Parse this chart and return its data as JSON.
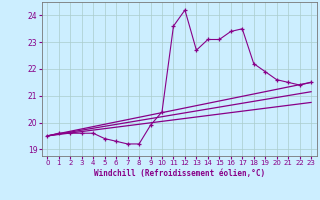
{
  "xlabel": "Windchill (Refroidissement éolien,°C)",
  "bg_color": "#cceeff",
  "line_color": "#880088",
  "grid_color": "#aacccc",
  "xlim": [
    -0.5,
    23.5
  ],
  "ylim": [
    18.75,
    24.5
  ],
  "xticks": [
    0,
    1,
    2,
    3,
    4,
    5,
    6,
    7,
    8,
    9,
    10,
    11,
    12,
    13,
    14,
    15,
    16,
    17,
    18,
    19,
    20,
    21,
    22,
    23
  ],
  "yticks": [
    19,
    20,
    21,
    22,
    23,
    24
  ],
  "series1_x": [
    0,
    1,
    2,
    3,
    4,
    5,
    6,
    7,
    8,
    9,
    10,
    11,
    12,
    13,
    14,
    15,
    16,
    17,
    18,
    19,
    20,
    21,
    22,
    23
  ],
  "series1_y": [
    19.5,
    19.6,
    19.6,
    19.6,
    19.6,
    19.4,
    19.3,
    19.2,
    19.2,
    19.9,
    20.4,
    23.6,
    24.2,
    22.7,
    23.1,
    23.1,
    23.4,
    23.5,
    22.2,
    21.9,
    21.6,
    21.5,
    21.4,
    21.5
  ],
  "line1_y0": 19.5,
  "line1_y1": 21.5,
  "line2_y0": 19.5,
  "line2_y1": 21.15,
  "line3_y0": 19.5,
  "line3_y1": 20.75
}
